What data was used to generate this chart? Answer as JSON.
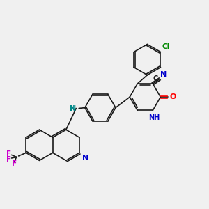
{
  "background_color": "#f0f0f0",
  "bond_color": "#1a1a1a",
  "atom_colors": {
    "N": "#0000cc",
    "O": "#ff0000",
    "Cl": "#008800",
    "F": "#cc00cc",
    "NH_teal": "#008888",
    "NH_blue": "#0000cc"
  }
}
